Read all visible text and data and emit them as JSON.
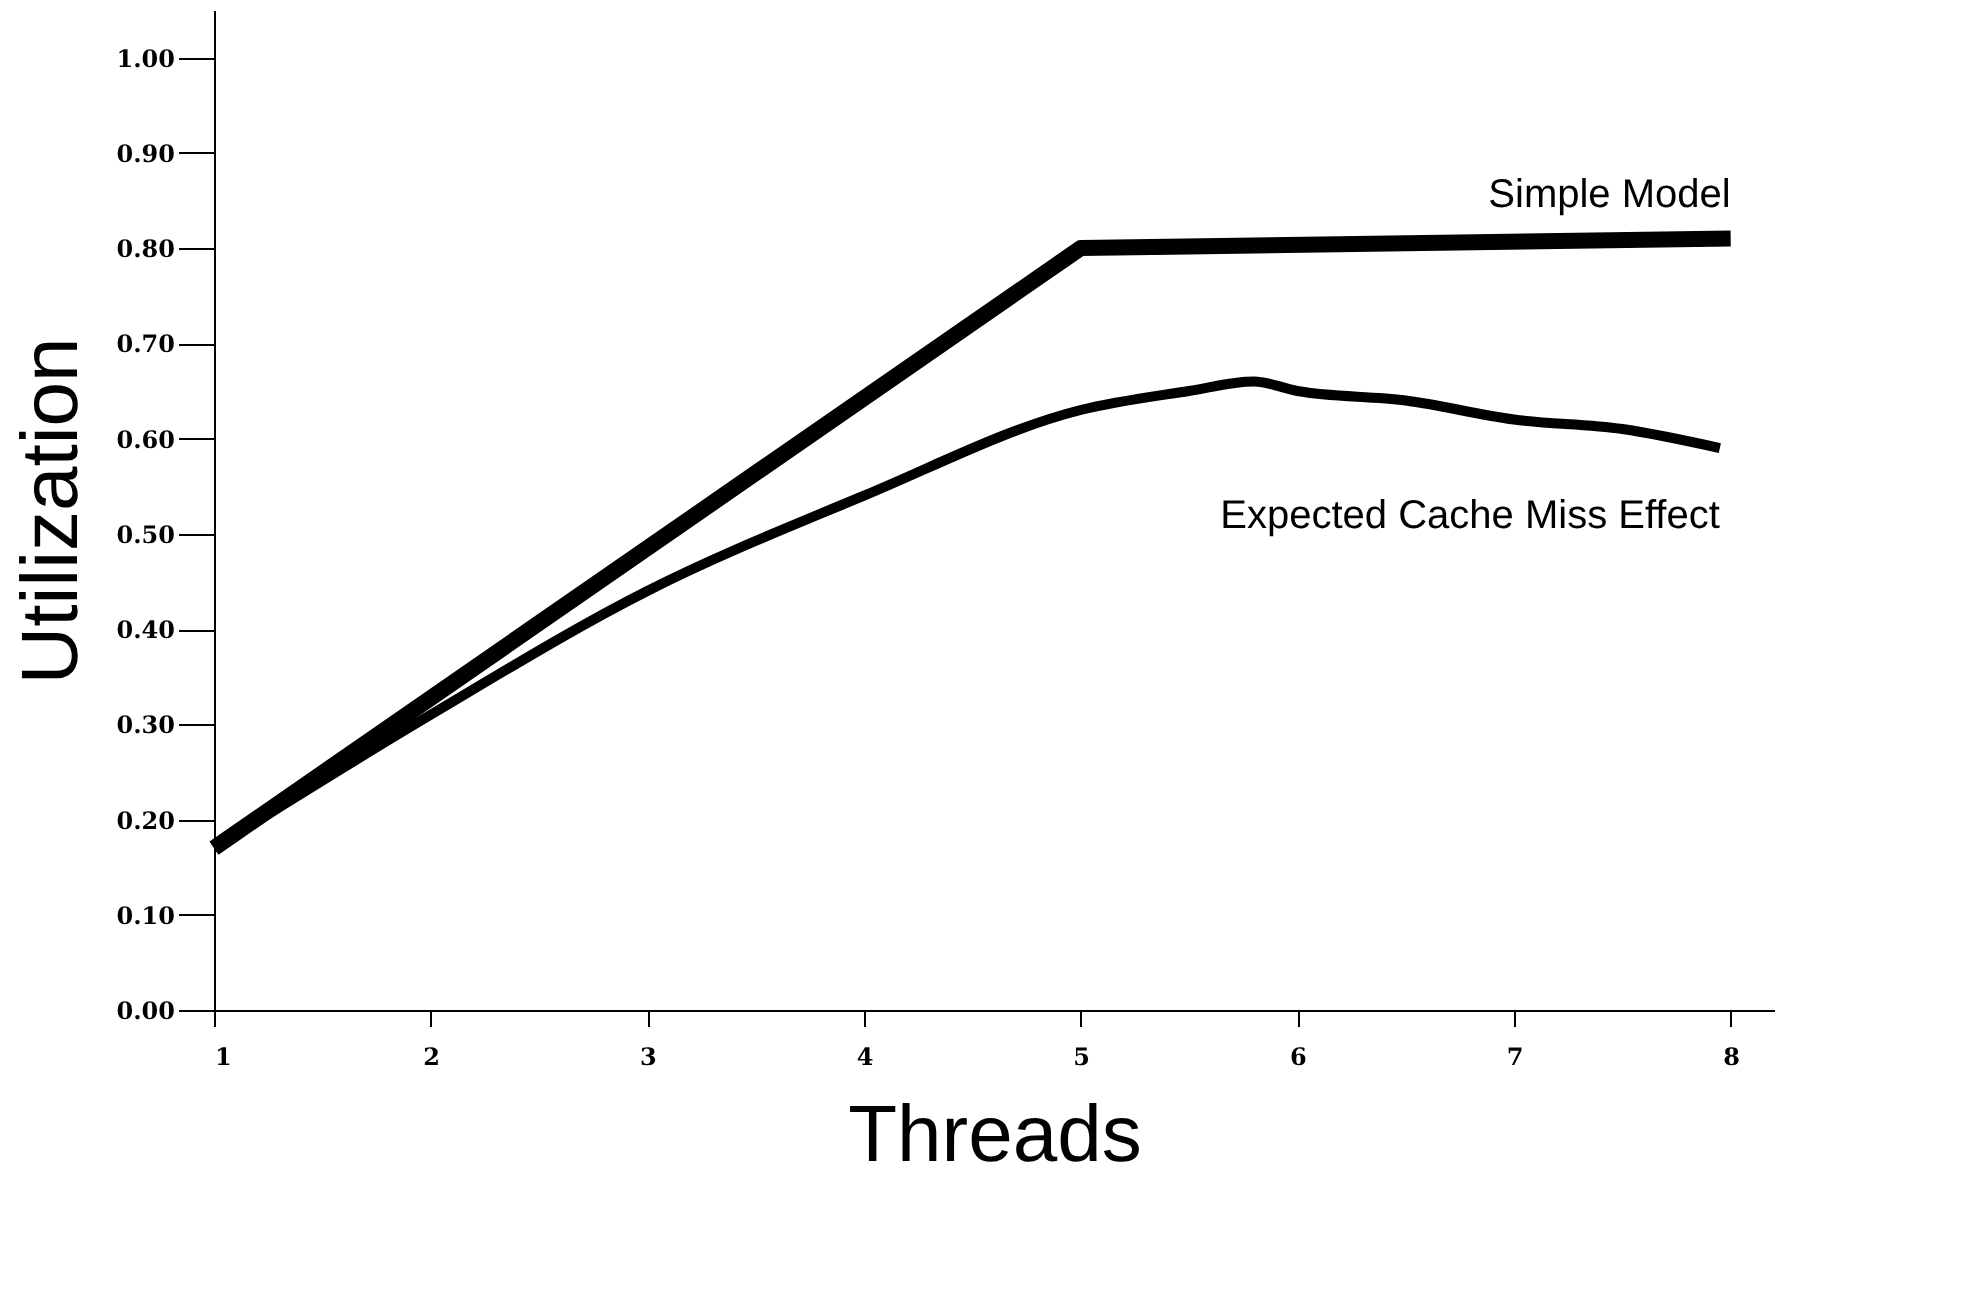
{
  "chart_data": {
    "type": "line",
    "xlabel": "Threads",
    "ylabel": "Utilization",
    "xlim": [
      1,
      8.2
    ],
    "xticks": [
      1,
      2,
      3,
      4,
      5,
      6,
      7,
      8
    ],
    "ylim": [
      0,
      1.05
    ],
    "yticks": [
      {
        "value": 0,
        "label": "0.00"
      },
      {
        "value": 0.1,
        "label": "0.10"
      },
      {
        "value": 0.2,
        "label": "0.20"
      },
      {
        "value": 0.3,
        "label": "0.30"
      },
      {
        "value": 0.4,
        "label": "0.40"
      },
      {
        "value": 0.5,
        "label": "0.50"
      },
      {
        "value": 0.6,
        "label": "0.60"
      },
      {
        "value": 0.7,
        "label": "0.70"
      },
      {
        "value": 0.8,
        "label": "0.80"
      },
      {
        "value": 0.9,
        "label": "0.90"
      },
      {
        "value": 1.0,
        "label": "1.00"
      }
    ],
    "grid": false,
    "marker": "none",
    "line_style": "solid",
    "series": [
      {
        "name": "Simple Model",
        "color": "#000000",
        "x": [
          1,
          5,
          8
        ],
        "values": [
          0.17,
          0.8,
          0.81
        ]
      },
      {
        "name": "Expected Cache Miss Effect",
        "color": "#000000",
        "x": [
          1,
          2,
          3,
          4,
          5,
          5.5,
          5.8,
          6,
          6.5,
          7,
          7.5,
          7.95
        ],
        "values": [
          0.17,
          0.31,
          0.44,
          0.54,
          0.63,
          0.65,
          0.66,
          0.65,
          0.64,
          0.62,
          0.61,
          0.59
        ]
      }
    ]
  }
}
